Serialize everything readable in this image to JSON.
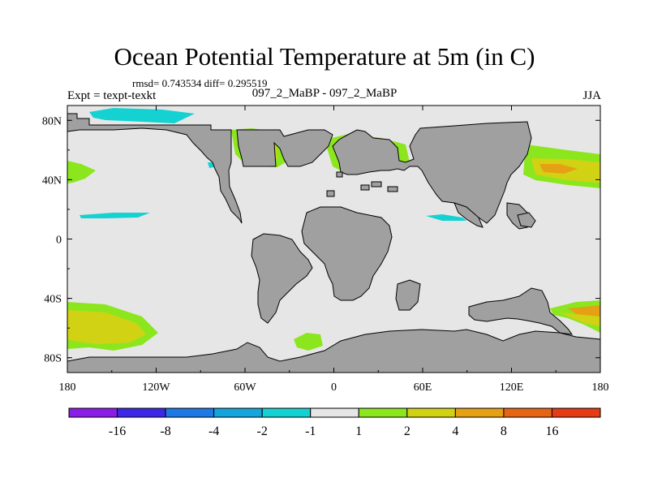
{
  "title": "Ocean Potential Temperature at 5m (in C)",
  "stats": "rmsd= 0.743534 diff= 0.295519",
  "experiment": "Expt = texpt-texkt",
  "comparison": "097_2_MaBP - 097_2_MaBP",
  "season": "JJA",
  "axes": {
    "x_ticks": [
      {
        "value": -180,
        "label": "180"
      },
      {
        "value": -120,
        "label": "120W"
      },
      {
        "value": -60,
        "label": "60W"
      },
      {
        "value": 0,
        "label": "0"
      },
      {
        "value": 60,
        "label": "60E"
      },
      {
        "value": 120,
        "label": "120E"
      },
      {
        "value": 180,
        "label": "180"
      }
    ],
    "y_ticks": [
      {
        "value": 80,
        "label": "80N"
      },
      {
        "value": 40,
        "label": "40N"
      },
      {
        "value": 0,
        "label": "0"
      },
      {
        "value": -40,
        "label": "40S"
      },
      {
        "value": -80,
        "label": "80S"
      }
    ],
    "lon_range": [
      -180,
      180
    ],
    "lat_range": [
      -90,
      90
    ]
  },
  "colorbar": {
    "colors": [
      "#8b1ee6",
      "#3c28e6",
      "#1e78e6",
      "#14a5dc",
      "#14d2d2",
      "#e6e6e6",
      "#8ce61e",
      "#d2d214",
      "#e6a014",
      "#e66414",
      "#e63c14"
    ],
    "labels": [
      "-16",
      "-8",
      "-4",
      "-2",
      "-1",
      "1",
      "2",
      "4",
      "8",
      "16"
    ]
  },
  "colors": {
    "land": "#a0a0a0",
    "ocean_background": "#e6e6e6",
    "land_outline": "#000000"
  }
}
